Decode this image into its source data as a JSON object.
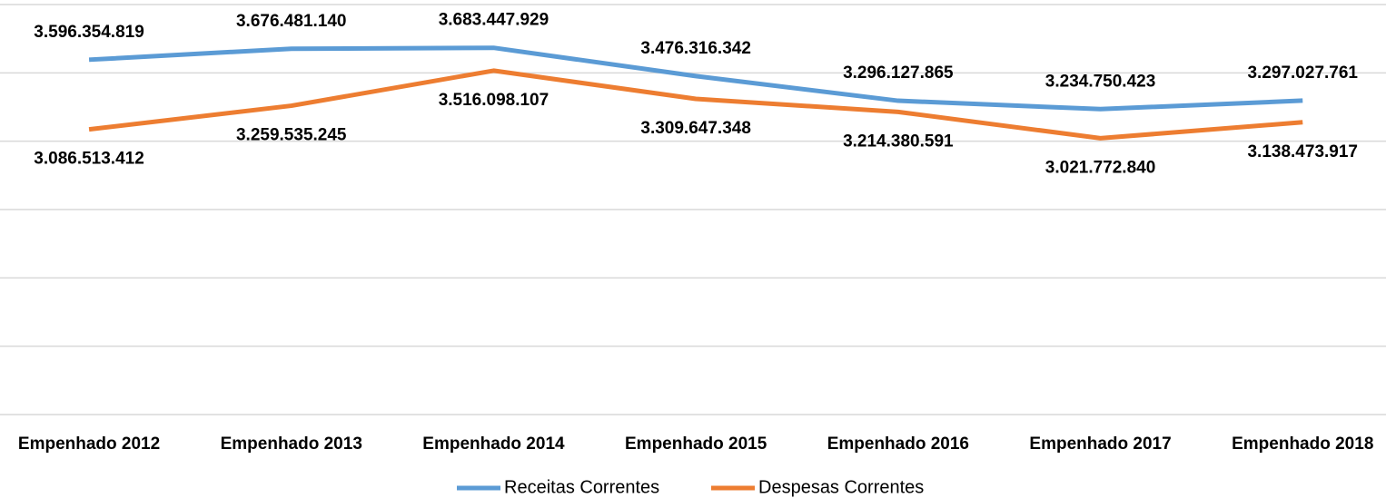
{
  "chart_data": {
    "type": "line",
    "categories": [
      "Empenhado 2012",
      "Empenhado 2013",
      "Empenhado 2014",
      "Empenhado 2015",
      "Empenhado 2016",
      "Empenhado 2017",
      "Empenhado 2018"
    ],
    "series": [
      {
        "name": "Receitas Correntes",
        "color": "#5b9bd5",
        "values": [
          3596354819,
          3676481140,
          3683447929,
          3476316342,
          3296127865,
          3234750423,
          3297027761
        ],
        "value_labels": [
          "3.596.354.819",
          "3.676.481.140",
          "3.683.447.929",
          "3.476.316.342",
          "3.296.127.865",
          "3.234.750.423",
          "3.297.027.761"
        ]
      },
      {
        "name": "Despesas Correntes",
        "color": "#ed7d31",
        "values": [
          3086513412,
          3259535245,
          3516098107,
          3309647348,
          3214380591,
          3021772840,
          3138473917
        ],
        "value_labels": [
          "3.086.513.412",
          "3.259.535.245",
          "3.516.098.107",
          "3.309.647.348",
          "3.214.380.591",
          "3.021.772.840",
          "3.138.473.917"
        ]
      }
    ],
    "ylim": [
      1000000000,
      4000000000
    ],
    "yticks": [
      1000000000,
      1500000000,
      2000000000,
      2500000000,
      3000000000,
      3500000000,
      4000000000
    ],
    "grid": true,
    "legend": "bottom"
  }
}
